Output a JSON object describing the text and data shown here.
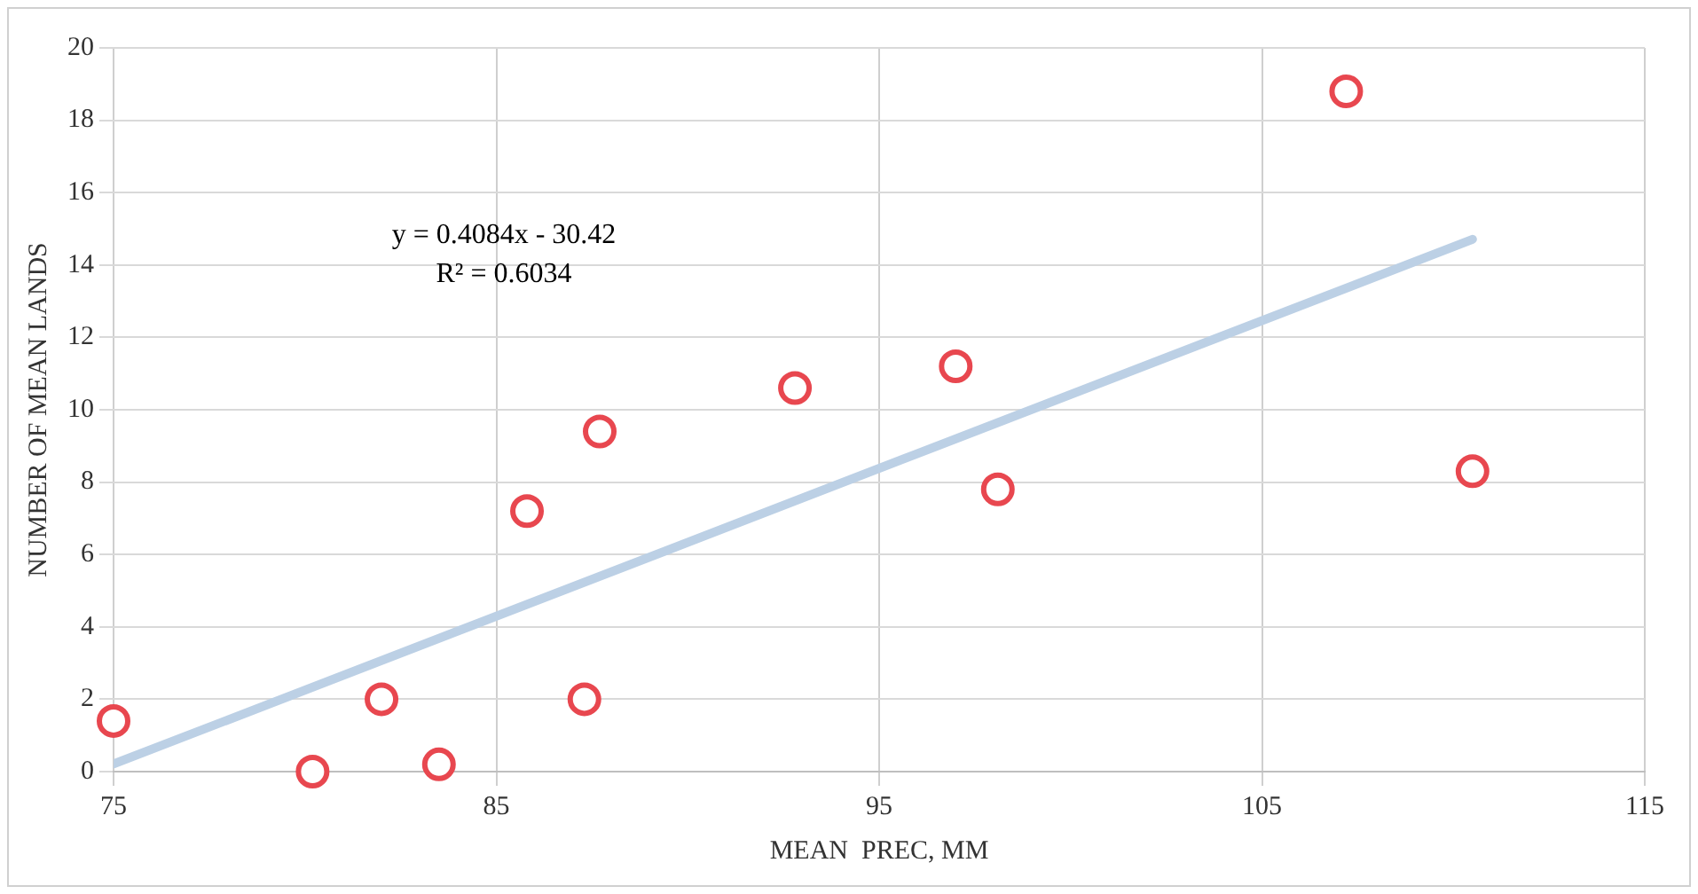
{
  "chart_data": {
    "type": "scatter",
    "xlabel": "MEAN  PREC, MM",
    "ylabel": "NUMBER OF MEAN LANDS",
    "annotations": [
      "y = 0.4084x - 30.42",
      "R² = 0.6034"
    ],
    "series": [
      {
        "type": "scatter",
        "marker": "circle",
        "color": "#e8474f",
        "x": [
          75.0,
          80.2,
          82.0,
          83.5,
          85.8,
          87.7,
          87.3,
          92.8,
          97.0,
          98.1,
          107.2,
          110.5
        ],
        "values": [
          1.4,
          0,
          2,
          0.2,
          7.2,
          9.4,
          2,
          10.6,
          11.2,
          7.8,
          18.8,
          8.3
        ]
      },
      {
        "type": "line",
        "marker": "none",
        "color": "#bcd0e5",
        "x": [
          75,
          110.5
        ],
        "values": [
          0.21,
          14.71
        ]
      }
    ],
    "xlim": [
      75,
      115
    ],
    "xticks": [
      75,
      85,
      95,
      105,
      115
    ],
    "ylim": [
      0,
      20
    ],
    "yticks": [
      0,
      2,
      4,
      6,
      8,
      10,
      12,
      14,
      16,
      18,
      20
    ],
    "grid": true,
    "legend": false
  }
}
